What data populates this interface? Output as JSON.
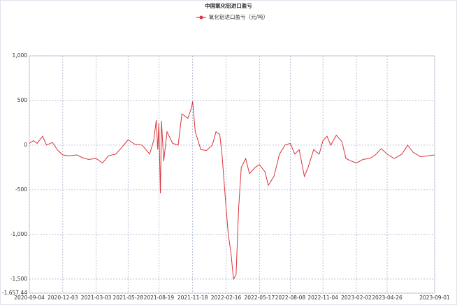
{
  "chart_data": {
    "type": "line",
    "title": "中国氧化铝进口盈亏",
    "x": [
      "2020-09-04",
      "2020-09-15",
      "2020-09-25",
      "2020-10-10",
      "2020-10-20",
      "2020-11-05",
      "2020-11-20",
      "2020-12-03",
      "2020-12-20",
      "2021-01-10",
      "2021-01-25",
      "2021-02-10",
      "2021-03-03",
      "2021-03-20",
      "2021-04-05",
      "2021-04-25",
      "2021-05-10",
      "2021-05-28",
      "2021-06-15",
      "2021-07-05",
      "2021-07-25",
      "2021-08-05",
      "2021-08-12",
      "2021-08-16",
      "2021-08-19",
      "2021-08-23",
      "2021-08-26",
      "2021-09-01",
      "2021-09-10",
      "2021-09-25",
      "2021-10-10",
      "2021-10-20",
      "2021-11-05",
      "2021-11-15",
      "2021-11-18",
      "2021-11-25",
      "2021-12-10",
      "2021-12-25",
      "2022-01-10",
      "2022-01-20",
      "2022-01-30",
      "2022-02-05",
      "2022-02-16",
      "2022-02-22",
      "2022-03-01",
      "2022-03-08",
      "2022-03-15",
      "2022-03-22",
      "2022-03-29",
      "2022-04-10",
      "2022-04-20",
      "2022-05-05",
      "2022-05-17",
      "2022-06-01",
      "2022-06-10",
      "2022-06-25",
      "2022-07-10",
      "2022-07-25",
      "2022-08-08",
      "2022-08-20",
      "2022-09-01",
      "2022-09-15",
      "2022-09-25",
      "2022-10-10",
      "2022-10-25",
      "2022-11-04",
      "2022-11-15",
      "2022-11-25",
      "2022-12-10",
      "2022-12-25",
      "2023-01-05",
      "2023-01-20",
      "2023-02-02",
      "2023-02-20",
      "2023-03-10",
      "2023-03-25",
      "2023-04-10",
      "2023-04-26",
      "2023-05-15",
      "2023-06-05",
      "2023-06-20",
      "2023-07-05",
      "2023-07-25",
      "2023-09-01"
    ],
    "series": [
      {
        "name": "氧化铝进口盈亏（元/吨）",
        "color": "#d9343c",
        "values": [
          20,
          50,
          20,
          100,
          0,
          30,
          -60,
          -110,
          -120,
          -110,
          -140,
          -160,
          -150,
          -200,
          -120,
          -100,
          -30,
          60,
          10,
          0,
          -100,
          50,
          280,
          -50,
          250,
          -540,
          270,
          -180,
          150,
          20,
          0,
          350,
          300,
          420,
          490,
          150,
          -50,
          -60,
          0,
          150,
          120,
          -100,
          -700,
          -1000,
          -1200,
          -1500,
          -1450,
          -700,
          -250,
          -150,
          -320,
          -250,
          -220,
          -300,
          -450,
          -350,
          -100,
          0,
          20,
          -100,
          -50,
          -350,
          -250,
          -50,
          -100,
          50,
          100,
          0,
          110,
          40,
          -150,
          -180,
          -200,
          -160,
          -150,
          -110,
          -40,
          -100,
          -150,
          -100,
          0,
          -80,
          -130,
          -110
        ]
      }
    ],
    "xlim": [
      "2020-09-04",
      "2023-09-01"
    ],
    "xticks": [
      "2020-09-04",
      "2020-12-03",
      "2021-03-03",
      "2021-05-28",
      "2021-08-19",
      "2021-11-18",
      "2022-02-16",
      "2022-05-17",
      "2022-08-08",
      "2022-11-04",
      "2023-02-02",
      "2023-04-26",
      "2023-09-01"
    ],
    "ylim": [
      -1657.44,
      1000
    ],
    "yticks": [
      {
        "value": 1000,
        "label": "1,000"
      },
      500,
      0,
      -500,
      {
        "value": -1000,
        "label": "-1,000"
      },
      {
        "value": -1500,
        "label": "-1,500"
      },
      {
        "value": -1657.44,
        "label": "-1,657.44"
      }
    ],
    "grid": true
  }
}
